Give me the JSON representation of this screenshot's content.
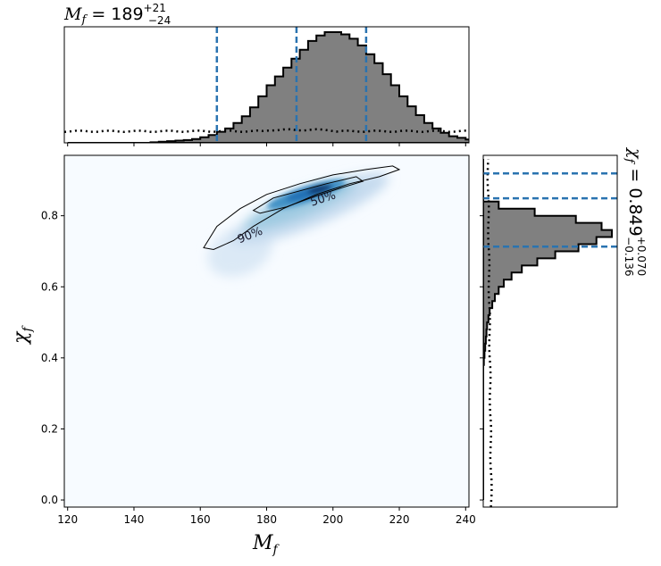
{
  "chart_data": {
    "type": "corner",
    "x_marginal_title": {
      "main": "M",
      "sub": "f",
      "value": " = 189",
      "sup": "+21",
      "subv": "−24"
    },
    "y_marginal_title": {
      "main": "χ",
      "sub": "f",
      "value": " = 0.849",
      "sup": "+0.070",
      "subv": "−0.136"
    },
    "xlabel": {
      "main": "M",
      "sub": "f"
    },
    "ylabel": {
      "main": "χ",
      "sub": "f"
    },
    "xlim": [
      119,
      241
    ],
    "ylim": [
      -0.02,
      0.97
    ],
    "xticks": [
      "120",
      "140",
      "160",
      "180",
      "200",
      "220",
      "240"
    ],
    "yticks": [
      "0.0",
      "0.2",
      "0.4",
      "0.6",
      "0.8"
    ],
    "xtick_values": [
      120,
      140,
      160,
      180,
      200,
      220,
      240
    ],
    "ytick_values": [
      0.0,
      0.2,
      0.4,
      0.6,
      0.8
    ],
    "x_quantile_lines": [
      165,
      189,
      210
    ],
    "y_quantile_lines": [
      0.713,
      0.849,
      0.919
    ],
    "contour_labels": [
      "50%",
      "90%"
    ],
    "x_hist": {
      "edges_start": 120,
      "bin_width": 2.5,
      "counts": [
        0,
        0,
        0,
        0,
        0,
        0,
        0,
        0,
        0,
        0,
        0.5,
        1,
        1.5,
        2,
        2.5,
        3.5,
        5,
        7,
        10,
        13,
        18,
        24,
        32,
        42,
        52,
        60,
        68,
        76,
        84,
        92,
        97,
        100,
        100,
        98,
        94,
        88,
        80,
        72,
        62,
        52,
        42,
        33,
        25,
        18,
        13,
        9,
        6,
        4.5,
        3,
        2,
        1.2
      ]
    },
    "y_hist": {
      "edges_start": 0.0,
      "bin_width": 0.02,
      "counts": [
        0,
        0,
        0,
        0,
        0,
        0,
        0,
        0,
        0,
        0,
        0,
        0,
        0,
        0,
        0,
        0,
        0,
        0,
        0,
        0.5,
        1,
        1.5,
        2,
        2.5,
        3,
        4,
        5,
        7,
        9,
        12,
        16,
        22,
        30,
        42,
        56,
        74,
        88,
        100,
        92,
        72,
        40,
        12,
        0,
        0,
        0,
        0,
        0,
        0
      ]
    },
    "colors": {
      "hist_fill": "#808080",
      "quantile": "#2a73b0",
      "density": "#08306b"
    }
  }
}
